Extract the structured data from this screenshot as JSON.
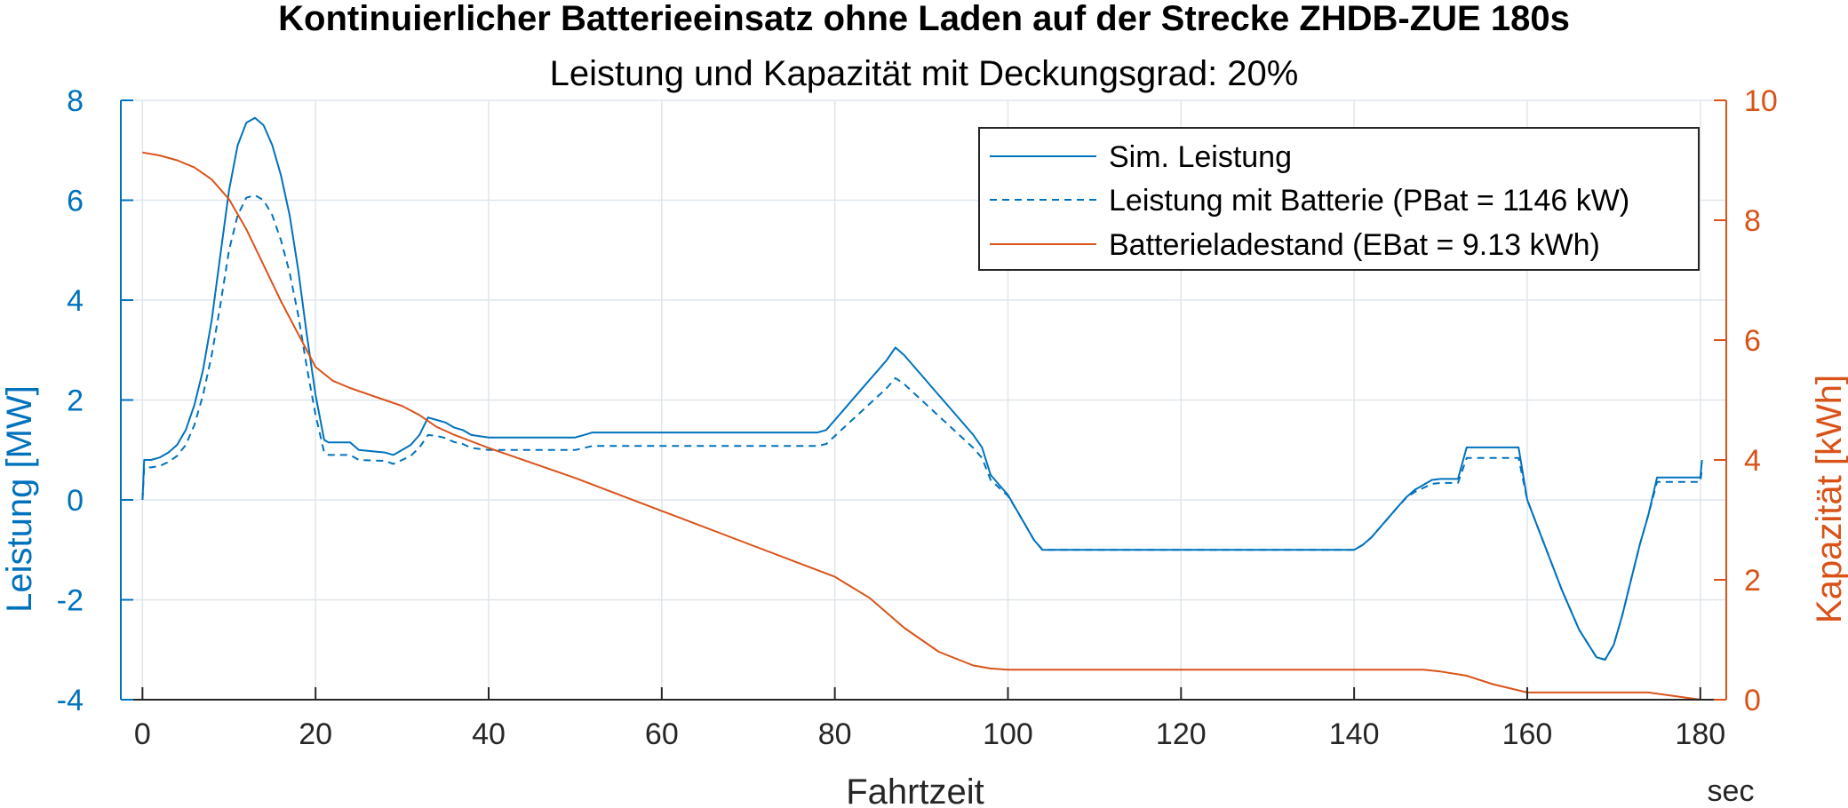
{
  "chart_data": {
    "type": "line",
    "title": "Kontinuierlicher Batterieeinsatz ohne Laden auf der Strecke ZHDB-ZUE 180s",
    "subtitle": "Leistung und Kapazität mit Deckungsgrad: 20%",
    "xlabel": "Fahrtzeit",
    "xunit": "sec",
    "ylabel_left": "Leistung [MW]",
    "ylabel_right": "Kapazität [kWh]",
    "xlim": [
      -2.5,
      183
    ],
    "ylim_left": [
      -4,
      8
    ],
    "ylim_right": [
      0,
      10
    ],
    "xticks": [
      0,
      20,
      40,
      60,
      80,
      100,
      120,
      140,
      160,
      180
    ],
    "yticks_left": [
      -4,
      -2,
      0,
      2,
      4,
      6,
      8
    ],
    "yticks_right": [
      0,
      2,
      4,
      6,
      8,
      10
    ],
    "grid": true,
    "legend_position": "top-right",
    "colors": {
      "blue": "#0072BD",
      "orange": "#D95319",
      "grid": "#dfe6ec"
    },
    "series": [
      {
        "name": "Sim. Leistung",
        "axis": "left",
        "style": "solid",
        "color": "#0072BD",
        "x": [
          0,
          0.2,
          1,
          2,
          3,
          4,
          5,
          6,
          7,
          8,
          9,
          10,
          11,
          12,
          13,
          14,
          15,
          16,
          17,
          18,
          19,
          20,
          21,
          21.5,
          24,
          25,
          28,
          29,
          30,
          31,
          32,
          33,
          34,
          35,
          36,
          37,
          38,
          40,
          45,
          50,
          51,
          52,
          60,
          70,
          78,
          79,
          80,
          81,
          82,
          83,
          84,
          85,
          86,
          87,
          88,
          89,
          90,
          91,
          92,
          93,
          94,
          95,
          96,
          97,
          98,
          99,
          100,
          101,
          102,
          103,
          104,
          110,
          120,
          130,
          140,
          141,
          142,
          143,
          144,
          145,
          146,
          147,
          148,
          149,
          150,
          152,
          153,
          155,
          157,
          159,
          160,
          162,
          164,
          166,
          168,
          169,
          170,
          171,
          172,
          173,
          174,
          175,
          177,
          179.5,
          180,
          180.2
        ],
        "y": [
          0,
          0.8,
          0.8,
          0.85,
          0.95,
          1.1,
          1.4,
          1.9,
          2.6,
          3.6,
          4.9,
          6.2,
          7.1,
          7.55,
          7.65,
          7.5,
          7.1,
          6.5,
          5.7,
          4.6,
          3.3,
          2.1,
          1.2,
          1.15,
          1.15,
          1.0,
          0.95,
          0.9,
          1.0,
          1.1,
          1.3,
          1.65,
          1.6,
          1.55,
          1.45,
          1.4,
          1.3,
          1.25,
          1.25,
          1.25,
          1.3,
          1.35,
          1.35,
          1.35,
          1.35,
          1.4,
          1.6,
          1.8,
          2.0,
          2.2,
          2.4,
          2.6,
          2.8,
          3.05,
          2.9,
          2.7,
          2.5,
          2.3,
          2.1,
          1.9,
          1.7,
          1.5,
          1.3,
          1.05,
          0.5,
          0.3,
          0.1,
          -0.2,
          -0.5,
          -0.8,
          -1.0,
          -1.0,
          -1.0,
          -1.0,
          -1.0,
          -0.9,
          -0.75,
          -0.55,
          -0.35,
          -0.15,
          0.05,
          0.2,
          0.3,
          0.4,
          0.42,
          0.42,
          1.05,
          1.05,
          1.05,
          1.05,
          0.0,
          -0.9,
          -1.8,
          -2.6,
          -3.15,
          -3.2,
          -2.9,
          -2.3,
          -1.6,
          -0.9,
          -0.3,
          0.45,
          0.45,
          0.45,
          0.45,
          0.8
        ]
      },
      {
        "name": "Leistung mit Batterie (PBat = 1146 kW)",
        "axis": "left",
        "style": "dashed",
        "color": "#0072BD",
        "x": [
          0,
          0.2,
          1,
          2,
          3,
          4,
          5,
          6,
          7,
          8,
          9,
          10,
          11,
          12,
          13,
          14,
          15,
          16,
          17,
          18,
          19,
          20,
          21,
          21.5,
          24,
          25,
          28,
          29,
          30,
          31,
          32,
          33,
          34,
          35,
          36,
          37,
          38,
          40,
          45,
          50,
          51,
          52,
          60,
          70,
          78,
          79,
          80,
          81,
          82,
          83,
          84,
          85,
          86,
          87,
          88,
          89,
          90,
          91,
          92,
          93,
          94,
          95,
          96,
          97,
          98,
          99,
          100,
          101,
          102,
          103,
          104,
          110,
          120,
          130,
          140,
          141,
          142,
          143,
          144,
          145,
          146,
          147,
          148,
          149,
          150,
          152,
          153,
          155,
          157,
          159,
          160,
          162,
          164,
          166,
          168,
          169,
          170,
          171,
          172,
          173,
          174,
          175,
          177,
          179.5,
          180,
          180.2
        ],
        "y": [
          0,
          0.65,
          0.65,
          0.68,
          0.76,
          0.88,
          1.1,
          1.5,
          2.1,
          2.9,
          3.9,
          5.0,
          5.7,
          6.05,
          6.1,
          6.0,
          5.7,
          5.2,
          4.55,
          3.7,
          2.65,
          1.7,
          0.95,
          0.9,
          0.9,
          0.8,
          0.78,
          0.72,
          0.8,
          0.88,
          1.05,
          1.3,
          1.28,
          1.24,
          1.16,
          1.12,
          1.04,
          1.0,
          1.0,
          1.0,
          1.04,
          1.08,
          1.08,
          1.08,
          1.08,
          1.12,
          1.28,
          1.44,
          1.6,
          1.76,
          1.92,
          2.08,
          2.24,
          2.44,
          2.32,
          2.16,
          2.0,
          1.84,
          1.68,
          1.52,
          1.36,
          1.2,
          1.04,
          0.84,
          0.4,
          0.24,
          0.08,
          -0.2,
          -0.5,
          -0.8,
          -1.0,
          -1.0,
          -1.0,
          -1.0,
          -1.0,
          -0.9,
          -0.75,
          -0.55,
          -0.35,
          -0.15,
          0.04,
          0.16,
          0.24,
          0.32,
          0.34,
          0.34,
          0.84,
          0.84,
          0.84,
          0.84,
          0.0,
          -0.9,
          -1.8,
          -2.6,
          -3.15,
          -3.2,
          -2.9,
          -2.3,
          -1.6,
          -0.9,
          -0.3,
          0.36,
          0.36,
          0.36,
          0.36,
          0.64
        ]
      },
      {
        "name": "Batterieladestand (EBat = 9.13 kWh)",
        "axis": "right",
        "style": "solid",
        "color": "#D95319",
        "x": [
          0,
          2,
          4,
          6,
          8,
          10,
          12,
          14,
          16,
          18,
          20,
          22,
          24,
          26,
          28,
          30,
          32,
          34,
          36,
          40,
          50,
          60,
          70,
          80,
          84,
          88,
          92,
          96,
          98,
          100,
          120,
          140,
          148,
          150,
          153,
          156,
          160,
          174,
          180
        ],
        "y": [
          9.13,
          9.08,
          9.0,
          8.88,
          8.68,
          8.35,
          7.85,
          7.25,
          6.65,
          6.1,
          5.55,
          5.32,
          5.2,
          5.1,
          5.0,
          4.9,
          4.75,
          4.55,
          4.42,
          4.2,
          3.7,
          3.15,
          2.6,
          2.05,
          1.7,
          1.2,
          0.8,
          0.57,
          0.52,
          0.5,
          0.5,
          0.5,
          0.5,
          0.47,
          0.4,
          0.26,
          0.12,
          0.12,
          0.0
        ]
      }
    ]
  }
}
